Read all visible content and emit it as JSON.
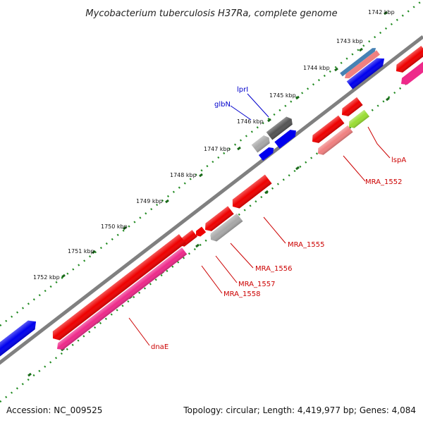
{
  "title": "Mycobacterium tuberculosis H37Ra, complete genome",
  "footer": {
    "accession": "Accession: NC_009525",
    "topology": "Topology: circular; Length: 4,419,977 bp; Genes: 4,084"
  },
  "scale_labels": [
    "1742 kbp",
    "1743 kbp",
    "1744 kbp",
    "1745 kbp",
    "1746 kbp",
    "1747 kbp",
    "1748 kbp",
    "1749 kbp",
    "1750 kbp",
    "1751 kbp",
    "1752 kbp"
  ],
  "gene_labels": [
    "lprI",
    "glbN",
    "lspA",
    "MRA_1552",
    "MRA_1555",
    "MRA_1556",
    "MRA_1557",
    "MRA_1558",
    "dnaE"
  ],
  "colors": {
    "background": "#ffffff",
    "backbone": "#808080",
    "tick_dots": "#228B22",
    "forward_label": "#0000cc",
    "reverse_label": "#cc0000",
    "blue_gene": "#0000ee",
    "red_gene": "#ee0000",
    "pink_gene": "#ee2a8a",
    "salmon_gene": "#f08080",
    "grey_gene": "#a8a8a8",
    "dark_grey_gene": "#555555",
    "yellowgreen_gene": "#99dd33",
    "steelblue_gene": "#4682b4"
  }
}
